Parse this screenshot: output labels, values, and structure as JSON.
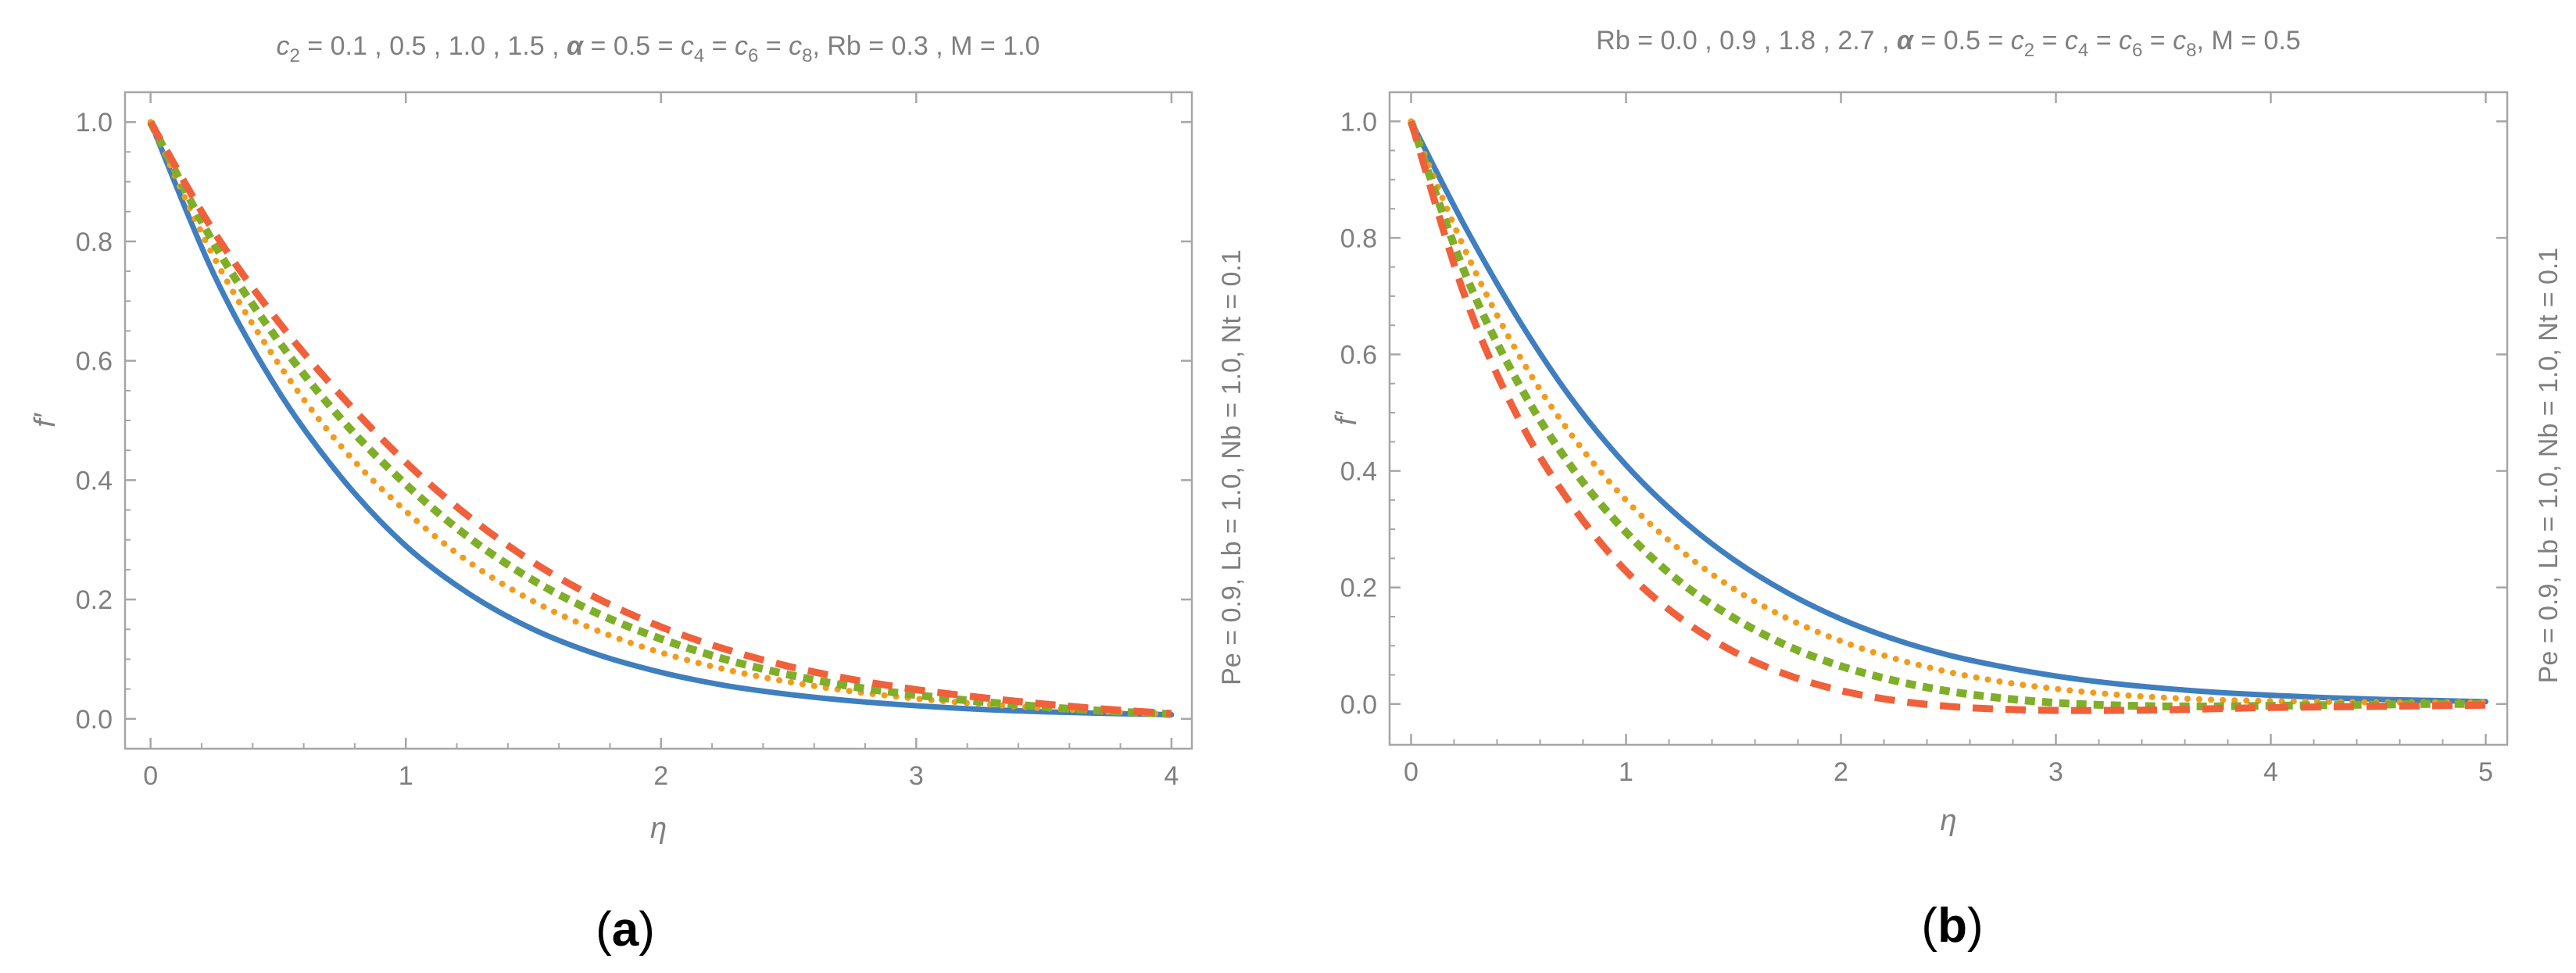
{
  "chart_data": [
    {
      "type": "line",
      "panel_label": "a",
      "title_parts": [
        "c",
        "2",
        " = 0.1 , 0.5 , 1.0 , 1.5 , ",
        "α",
        " = 0.5 = ",
        "c",
        "4",
        " = ",
        "c",
        "6",
        " = ",
        "c",
        "8",
        ", Rb = 0.3 , M = 1.0"
      ],
      "side_note": "Pe = 0.9, Lb = 1.0, Nb = 1.0, Nt = 0.1",
      "xlabel": "η",
      "ylabel": "f′",
      "xlim": [
        -0.1,
        4.08
      ],
      "ylim": [
        -0.05,
        1.05
      ],
      "xticks": [
        "0",
        "1",
        "2",
        "3",
        "4"
      ],
      "yticks": [
        "0.0",
        "0.2",
        "0.4",
        "0.6",
        "0.8",
        "1.0"
      ],
      "grid": false,
      "series": [
        {
          "name": "c2 = 0.1",
          "color": "#3f7fbf",
          "style": "solid",
          "x": [
            0,
            0.25,
            0.5,
            0.75,
            1,
            1.25,
            1.5,
            1.75,
            2,
            2.25,
            2.5,
            2.75,
            3,
            3.25,
            3.5,
            3.75,
            4
          ],
          "y": [
            1.0,
            0.743,
            0.55,
            0.403,
            0.29,
            0.209,
            0.15,
            0.108,
            0.078,
            0.056,
            0.041,
            0.03,
            0.022,
            0.016,
            0.012,
            0.009,
            0.007
          ]
        },
        {
          "name": "c2 = 0.5",
          "color": "#f29b1d",
          "style": "dotted",
          "x": [
            0,
            0.25,
            0.5,
            0.75,
            1,
            1.25,
            1.5,
            1.75,
            2,
            2.25,
            2.5,
            2.75,
            3,
            3.25,
            3.5,
            3.75,
            4
          ],
          "y": [
            1.0,
            0.772,
            0.596,
            0.455,
            0.348,
            0.262,
            0.197,
            0.148,
            0.111,
            0.083,
            0.062,
            0.046,
            0.034,
            0.025,
            0.018,
            0.012,
            0.008
          ]
        },
        {
          "name": "c2 = 1.0",
          "color": "#7fae29",
          "style": "short-dashed",
          "x": [
            0,
            0.25,
            0.5,
            0.75,
            1,
            1.25,
            1.5,
            1.75,
            2,
            2.25,
            2.5,
            2.75,
            3,
            3.25,
            3.5,
            3.75,
            4
          ],
          "y": [
            1.0,
            0.795,
            0.634,
            0.501,
            0.393,
            0.303,
            0.232,
            0.177,
            0.134,
            0.1,
            0.074,
            0.054,
            0.04,
            0.029,
            0.02,
            0.013,
            0.008
          ]
        },
        {
          "name": "c2 = 1.5",
          "color": "#f0603a",
          "style": "dashed",
          "x": [
            0,
            0.25,
            0.5,
            0.75,
            1,
            1.25,
            1.5,
            1.75,
            2,
            2.25,
            2.5,
            2.75,
            3,
            3.25,
            3.5,
            3.75,
            4
          ],
          "y": [
            1.0,
            0.815,
            0.666,
            0.54,
            0.43,
            0.338,
            0.262,
            0.202,
            0.154,
            0.117,
            0.088,
            0.066,
            0.049,
            0.036,
            0.025,
            0.016,
            0.009
          ]
        }
      ]
    },
    {
      "type": "line",
      "panel_label": "b",
      "title_parts": [
        "Rb = 0.0 , 0.9 , 1.8 , 2.7 , ",
        "α",
        " = 0.5 = ",
        "c",
        "2",
        " = ",
        "c",
        "4",
        " = ",
        "c",
        "6",
        " = ",
        "c",
        "8",
        ", M = 0.5"
      ],
      "side_note": "Pe = 0.9, Lb = 1.0, Nb = 1.0, Nt = 0.1",
      "xlabel": "η",
      "ylabel": "f′",
      "xlim": [
        -0.1,
        5.1
      ],
      "ylim": [
        -0.07,
        1.05
      ],
      "xticks": [
        "0",
        "1",
        "2",
        "3",
        "4",
        "5"
      ],
      "yticks": [
        "0.0",
        "0.2",
        "0.4",
        "0.6",
        "0.8",
        "1.0"
      ],
      "grid": false,
      "series": [
        {
          "name": "Rb = 0.0",
          "color": "#3f7fbf",
          "style": "solid",
          "x": [
            0,
            0.25,
            0.5,
            0.75,
            1,
            1.25,
            1.5,
            1.75,
            2,
            2.25,
            2.5,
            2.75,
            3,
            3.25,
            3.5,
            3.75,
            4,
            4.25,
            4.5,
            4.75,
            5
          ],
          "y": [
            1.0,
            0.82,
            0.66,
            0.522,
            0.41,
            0.32,
            0.248,
            0.191,
            0.146,
            0.111,
            0.084,
            0.064,
            0.048,
            0.036,
            0.027,
            0.02,
            0.015,
            0.011,
            0.008,
            0.006,
            0.004
          ]
        },
        {
          "name": "Rb = 0.9",
          "color": "#f29b1d",
          "style": "dotted",
          "x": [
            0,
            0.25,
            0.5,
            0.75,
            1,
            1.25,
            1.5,
            1.75,
            2,
            2.25,
            2.5,
            2.75,
            3,
            3.25,
            3.5,
            3.75,
            4,
            4.25,
            4.5,
            4.75,
            5
          ],
          "y": [
            1.0,
            0.78,
            0.6,
            0.46,
            0.35,
            0.265,
            0.198,
            0.147,
            0.108,
            0.078,
            0.055,
            0.038,
            0.026,
            0.017,
            0.011,
            0.007,
            0.005,
            0.004,
            0.003,
            0.003,
            0.003
          ]
        },
        {
          "name": "Rb = 1.8",
          "color": "#7fae29",
          "style": "short-dashed",
          "x": [
            0,
            0.25,
            0.5,
            0.75,
            1,
            1.25,
            1.5,
            1.75,
            2,
            2.25,
            2.5,
            2.75,
            3,
            3.25,
            3.5,
            3.75,
            4,
            4.25,
            4.5,
            4.75,
            5
          ],
          "y": [
            1.0,
            0.74,
            0.55,
            0.405,
            0.295,
            0.21,
            0.148,
            0.1,
            0.065,
            0.04,
            0.022,
            0.01,
            0.002,
            -0.002,
            -0.004,
            -0.004,
            -0.003,
            -0.002,
            -0.001,
            0.0,
            0.0
          ]
        },
        {
          "name": "Rb = 2.7",
          "color": "#f0603a",
          "style": "dashed",
          "x": [
            0,
            0.25,
            0.5,
            0.75,
            1,
            1.25,
            1.5,
            1.75,
            2,
            2.25,
            2.5,
            2.75,
            3,
            3.25,
            3.5,
            3.75,
            4,
            4.25,
            4.5,
            4.75,
            5
          ],
          "y": [
            1.0,
            0.7,
            0.49,
            0.34,
            0.228,
            0.148,
            0.09,
            0.05,
            0.023,
            0.006,
            -0.004,
            -0.009,
            -0.011,
            -0.011,
            -0.01,
            -0.008,
            -0.006,
            -0.005,
            -0.004,
            -0.003,
            -0.002
          ]
        }
      ]
    }
  ]
}
